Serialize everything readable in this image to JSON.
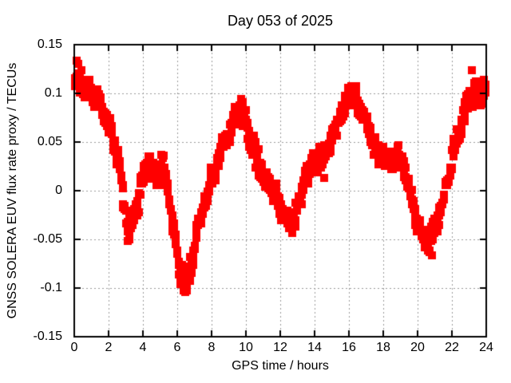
{
  "chart_data": {
    "type": "scatter",
    "title": "Day 053 of 2025",
    "xlabel": "GPS time / hours",
    "ylabel": "GNSS SOLERA EUV flux rate proxy / TECUs",
    "xlim": [
      0,
      24
    ],
    "ylim": [
      -0.15,
      0.15
    ],
    "grid": true,
    "legend": "none",
    "x_ticks": [
      {
        "value": 0,
        "label": "0"
      },
      {
        "value": 2,
        "label": "2"
      },
      {
        "value": 4,
        "label": "4"
      },
      {
        "value": 6,
        "label": "6"
      },
      {
        "value": 8,
        "label": "8"
      },
      {
        "value": 10,
        "label": "10"
      },
      {
        "value": 12,
        "label": "12"
      },
      {
        "value": 14,
        "label": "14"
      },
      {
        "value": 16,
        "label": "16"
      },
      {
        "value": 18,
        "label": "18"
      },
      {
        "value": 20,
        "label": "20"
      },
      {
        "value": 22,
        "label": "22"
      },
      {
        "value": 24,
        "label": "24"
      }
    ],
    "y_ticks": [
      {
        "value": 0.15,
        "label": "0.15"
      },
      {
        "value": 0.1,
        "label": "0.1"
      },
      {
        "value": 0.05,
        "label": "0.05"
      },
      {
        "value": 0,
        "label": "0"
      },
      {
        "value": -0.05,
        "label": "-0.05"
      },
      {
        "value": -0.1,
        "label": "-0.1"
      },
      {
        "value": -0.15,
        "label": "-0.15"
      }
    ],
    "marker": {
      "shape": "square",
      "size": 10,
      "color": "#ff0000"
    },
    "grid_color": "#9a9a9a",
    "series": [
      {
        "name": "EUV flux rate proxy",
        "trace": [
          [
            0.0,
            0.118,
            0.016
          ],
          [
            0.3,
            0.116,
            0.015
          ],
          [
            0.6,
            0.11,
            0.011
          ],
          [
            1.0,
            0.1,
            0.009
          ],
          [
            1.4,
            0.092,
            0.009
          ],
          [
            1.8,
            0.078,
            0.009
          ],
          [
            2.1,
            0.06,
            0.009
          ],
          [
            2.4,
            0.045,
            0.009
          ],
          [
            2.7,
            0.018,
            0.009
          ],
          [
            2.9,
            -0.012,
            0.009
          ],
          [
            3.1,
            -0.038,
            0.009
          ],
          [
            3.4,
            -0.03,
            0.009
          ],
          [
            3.7,
            -0.01,
            0.009
          ],
          [
            4.0,
            0.015,
            0.009
          ],
          [
            4.3,
            0.03,
            0.009
          ],
          [
            4.6,
            0.022,
            0.009
          ],
          [
            4.85,
            0.012,
            0.009
          ],
          [
            5.1,
            0.028,
            0.009
          ],
          [
            5.35,
            0.01,
            0.009
          ],
          [
            5.6,
            -0.015,
            0.009
          ],
          [
            5.85,
            -0.045,
            0.01
          ],
          [
            6.1,
            -0.075,
            0.012
          ],
          [
            6.35,
            -0.09,
            0.013
          ],
          [
            6.6,
            -0.094,
            0.012
          ],
          [
            6.8,
            -0.08,
            0.011
          ],
          [
            7.1,
            -0.045,
            0.009
          ],
          [
            7.4,
            -0.028,
            0.009
          ],
          [
            7.7,
            -0.008,
            0.009
          ],
          [
            8.0,
            0.012,
            0.009
          ],
          [
            8.4,
            0.032,
            0.009
          ],
          [
            8.8,
            0.05,
            0.009
          ],
          [
            9.1,
            0.063,
            0.009
          ],
          [
            9.4,
            0.078,
            0.009
          ],
          [
            9.7,
            0.082,
            0.009
          ],
          [
            10.0,
            0.072,
            0.009
          ],
          [
            10.3,
            0.048,
            0.009
          ],
          [
            10.6,
            0.033,
            0.009
          ],
          [
            11.0,
            0.013,
            0.009
          ],
          [
            11.4,
            0.005,
            0.009
          ],
          [
            11.8,
            -0.008,
            0.009
          ],
          [
            12.1,
            -0.022,
            0.009
          ],
          [
            12.5,
            -0.033,
            0.009
          ],
          [
            12.8,
            -0.03,
            0.009
          ],
          [
            13.1,
            -0.012,
            0.009
          ],
          [
            13.4,
            0.008,
            0.009
          ],
          [
            13.7,
            0.022,
            0.009
          ],
          [
            14.0,
            0.03,
            0.009
          ],
          [
            14.4,
            0.033,
            0.009
          ],
          [
            14.8,
            0.045,
            0.009
          ],
          [
            15.1,
            0.058,
            0.009
          ],
          [
            15.5,
            0.075,
            0.009
          ],
          [
            15.8,
            0.092,
            0.009
          ],
          [
            16.1,
            0.1,
            0.01
          ],
          [
            16.4,
            0.097,
            0.01
          ],
          [
            16.7,
            0.082,
            0.009
          ],
          [
            17.0,
            0.07,
            0.009
          ],
          [
            17.4,
            0.05,
            0.009
          ],
          [
            17.7,
            0.035,
            0.009
          ],
          [
            18.0,
            0.038,
            0.009
          ],
          [
            18.4,
            0.028,
            0.009
          ],
          [
            18.8,
            0.03,
            0.01
          ],
          [
            19.1,
            0.032,
            0.01
          ],
          [
            19.4,
            0.012,
            0.009
          ],
          [
            19.7,
            -0.012,
            0.009
          ],
          [
            20.0,
            -0.035,
            0.009
          ],
          [
            20.4,
            -0.05,
            0.01
          ],
          [
            20.7,
            -0.051,
            0.01
          ],
          [
            21.0,
            -0.04,
            0.009
          ],
          [
            21.4,
            -0.015,
            0.009
          ],
          [
            21.8,
            0.015,
            0.009
          ],
          [
            22.1,
            0.04,
            0.009
          ],
          [
            22.5,
            0.065,
            0.01
          ],
          [
            22.8,
            0.083,
            0.011
          ],
          [
            23.1,
            0.096,
            0.011
          ],
          [
            23.4,
            0.098,
            0.011
          ],
          [
            23.7,
            0.098,
            0.011
          ],
          [
            24.0,
            0.106,
            0.01
          ]
        ],
        "outliers": [
          [
            5.2,
            0.036
          ],
          [
            10.75,
            0.043
          ],
          [
            14.55,
            0.013
          ],
          [
            18.9,
            0.047
          ],
          [
            20.85,
            -0.066
          ],
          [
            23.15,
            0.124
          ]
        ]
      }
    ],
    "sampling": {
      "step_hours": 0.025,
      "seed": 20250053
    }
  }
}
